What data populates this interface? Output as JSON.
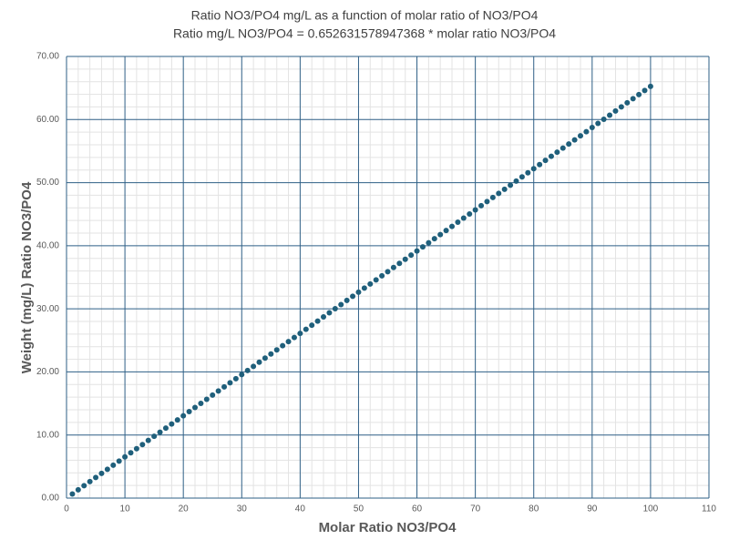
{
  "chart_data": {
    "type": "scatter",
    "title": "Ratio NO3/PO4 mg/L as a function of molar ratio of NO3/PO4",
    "subtitle": "Ratio mg/L NO3/PO4 = 0.652631578947368 * molar ratio NO3/PO4",
    "x_label": "Molar Ratio NO3/PO4",
    "y_label": "Weight (mg/L) Ratio NO3/PO4",
    "x": [
      1,
      2,
      3,
      4,
      5,
      6,
      7,
      8,
      9,
      10,
      11,
      12,
      13,
      14,
      15,
      16,
      17,
      18,
      19,
      20,
      21,
      22,
      23,
      24,
      25,
      26,
      27,
      28,
      29,
      30,
      31,
      32,
      33,
      34,
      35,
      36,
      37,
      38,
      39,
      40,
      41,
      42,
      43,
      44,
      45,
      46,
      47,
      48,
      49,
      50,
      51,
      52,
      53,
      54,
      55,
      56,
      57,
      58,
      59,
      60,
      61,
      62,
      63,
      64,
      65,
      66,
      67,
      68,
      69,
      70,
      71,
      72,
      73,
      74,
      75,
      76,
      77,
      78,
      79,
      80,
      81,
      82,
      83,
      84,
      85,
      86,
      87,
      88,
      89,
      90,
      91,
      92,
      93,
      94,
      95,
      96,
      97,
      98,
      99,
      100
    ],
    "values": [
      0.65,
      1.31,
      1.96,
      2.61,
      3.26,
      3.92,
      4.57,
      5.22,
      5.87,
      6.53,
      7.18,
      7.83,
      8.48,
      9.14,
      9.79,
      10.44,
      11.09,
      11.75,
      12.4,
      13.05,
      13.71,
      14.36,
      15.01,
      15.66,
      16.32,
      16.97,
      17.62,
      18.27,
      18.93,
      19.58,
      20.23,
      20.88,
      21.54,
      22.19,
      22.84,
      23.49,
      24.15,
      24.8,
      25.45,
      26.11,
      26.76,
      27.41,
      28.06,
      28.72,
      29.37,
      30.02,
      30.67,
      31.33,
      31.98,
      32.63,
      33.28,
      33.94,
      34.59,
      35.24,
      35.89,
      36.55,
      37.2,
      37.85,
      38.51,
      39.16,
      39.81,
      40.46,
      41.12,
      41.77,
      42.42,
      43.07,
      43.73,
      44.38,
      45.03,
      45.68,
      46.34,
      46.99,
      47.64,
      48.29,
      48.95,
      49.6,
      50.25,
      50.91,
      51.56,
      52.21,
      52.86,
      53.52,
      54.17,
      54.82,
      55.47,
      56.13,
      56.78,
      57.43,
      58.08,
      58.74,
      59.39,
      60.04,
      60.69,
      61.35,
      62.0,
      62.65,
      63.31,
      63.96,
      64.61,
      65.26
    ],
    "color": "#1f5f7b",
    "xlim": [
      0,
      110
    ],
    "xticks": [
      0,
      10,
      20,
      30,
      40,
      50,
      60,
      70,
      80,
      90,
      100,
      110
    ],
    "ylim": [
      0,
      70
    ],
    "yticks": [
      {
        "value": 0,
        "label": "0.00"
      },
      {
        "value": 10,
        "label": "10.00"
      },
      {
        "value": 20,
        "label": "20.00"
      },
      {
        "value": 30,
        "label": "30.00"
      },
      {
        "value": 40,
        "label": "40.00"
      },
      {
        "value": 50,
        "label": "50.00"
      },
      {
        "value": 60,
        "label": "60.00"
      },
      {
        "value": 70,
        "label": "70.00"
      }
    ],
    "grid": true,
    "minor_grid": true
  }
}
